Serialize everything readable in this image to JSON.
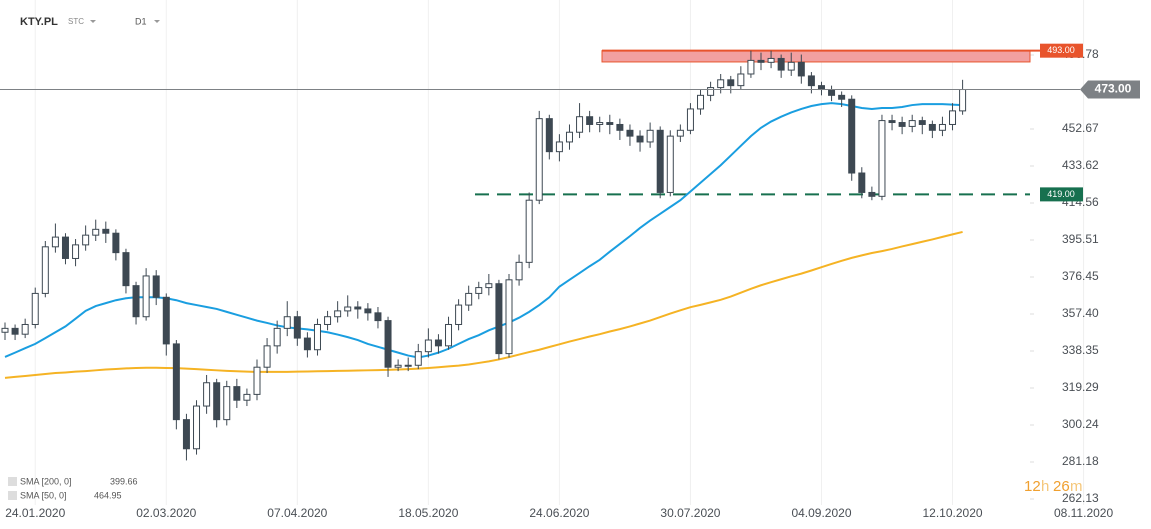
{
  "header": {
    "symbol": "KTY.PL",
    "type": "STC",
    "interval": "D1"
  },
  "chart_data": {
    "type": "candlestick",
    "categories": [
      null,
      null,
      null,
      "24.01.2020",
      null,
      null,
      null,
      null,
      null,
      null,
      null,
      null,
      null,
      null,
      null,
      null,
      "02.03.2020",
      null,
      null,
      null,
      null,
      null,
      null,
      null,
      null,
      null,
      null,
      null,
      null,
      "07.04.2020",
      null,
      null,
      null,
      null,
      null,
      null,
      null,
      null,
      null,
      null,
      null,
      null,
      "18.05.2020",
      null,
      null,
      null,
      null,
      null,
      null,
      null,
      null,
      null,
      null,
      null,
      null,
      "24.06.2020",
      null,
      null,
      null,
      null,
      null,
      null,
      null,
      null,
      null,
      null,
      null,
      null,
      "30.07.2020",
      null,
      null,
      null,
      null,
      null,
      null,
      null,
      null,
      null,
      null,
      null,
      null,
      "04.09.2020",
      null,
      null,
      null,
      null,
      null,
      null,
      null,
      null,
      null,
      null,
      null,
      null,
      "12.10.2020",
      null,
      null,
      null,
      null,
      null,
      null,
      null,
      null,
      null,
      null,
      null,
      null,
      "08.11.2020"
    ],
    "open": [
      348,
      350,
      347,
      352,
      368,
      392,
      397,
      386,
      393,
      398,
      401,
      399,
      389,
      372,
      356,
      377,
      366,
      342,
      303,
      288,
      310,
      322,
      303,
      320,
      313,
      316,
      330,
      341,
      350,
      356,
      345,
      339,
      352,
      356,
      359,
      361,
      360,
      358,
      354,
      330,
      331,
      331,
      338,
      344,
      341,
      352,
      362,
      368,
      371,
      373,
      337,
      375,
      384,
      416,
      458,
      441,
      446,
      451,
      459,
      455,
      456,
      455,
      452,
      449,
      446,
      452,
      420,
      449,
      452,
      463,
      470,
      474,
      478,
      475,
      481,
      488,
      487,
      489,
      483,
      487,
      480,
      475,
      473,
      470,
      468,
      430,
      420,
      418,
      457,
      456,
      454,
      457,
      455,
      452,
      455,
      462,
      null,
      null,
      null,
      null,
      null,
      null,
      null,
      null,
      null,
      null,
      null,
      null
    ],
    "high": [
      353,
      352,
      355,
      371,
      395,
      404,
      399,
      396,
      403,
      406,
      405,
      401,
      391,
      374,
      381,
      380,
      368,
      344,
      306,
      313,
      326,
      324,
      323,
      324,
      319,
      334,
      345,
      354,
      364,
      359,
      348,
      355,
      359,
      364,
      367,
      364,
      363,
      361,
      356,
      334,
      335,
      342,
      350,
      347,
      356,
      365,
      372,
      374,
      378,
      375,
      378,
      388,
      420,
      462,
      460,
      450,
      455,
      466,
      462,
      459,
      460,
      458,
      455,
      452,
      456,
      454,
      452,
      455,
      466,
      473,
      477,
      481,
      480,
      485,
      493,
      492,
      493,
      491,
      492,
      491,
      482,
      477,
      475,
      472,
      470,
      433,
      423,
      460,
      460,
      459,
      460,
      459,
      457,
      459,
      466,
      478,
      null,
      null,
      null,
      null,
      null,
      null,
      null,
      null,
      null,
      null,
      null,
      null
    ],
    "low": [
      344,
      344,
      345,
      350,
      366,
      389,
      383,
      382,
      390,
      395,
      394,
      385,
      368,
      352,
      354,
      362,
      336,
      298,
      282,
      285,
      306,
      299,
      300,
      309,
      310,
      313,
      327,
      337,
      346,
      341,
      335,
      336,
      349,
      353,
      356,
      355,
      354,
      350,
      325,
      328,
      328,
      329,
      335,
      337,
      339,
      349,
      359,
      365,
      367,
      334,
      335,
      372,
      381,
      414,
      437,
      436,
      442,
      448,
      451,
      451,
      450,
      447,
      444,
      441,
      443,
      417,
      418,
      446,
      450,
      460,
      467,
      471,
      471,
      473,
      479,
      483,
      484,
      479,
      480,
      476,
      471,
      470,
      467,
      464,
      426,
      417,
      416,
      416,
      452,
      450,
      451,
      450,
      448,
      449,
      452,
      460,
      null,
      null,
      null,
      null,
      null,
      null,
      null,
      null,
      null,
      null,
      null,
      null
    ],
    "close": [
      350,
      347,
      352,
      368,
      392,
      397,
      386,
      393,
      398,
      401,
      399,
      389,
      372,
      356,
      377,
      366,
      342,
      303,
      288,
      310,
      322,
      303,
      320,
      313,
      316,
      330,
      341,
      350,
      356,
      345,
      339,
      352,
      356,
      359,
      361,
      360,
      358,
      354,
      330,
      331,
      331,
      338,
      344,
      341,
      352,
      362,
      368,
      371,
      373,
      337,
      375,
      384,
      416,
      458,
      441,
      446,
      451,
      459,
      455,
      456,
      455,
      452,
      449,
      446,
      452,
      420,
      449,
      452,
      463,
      470,
      474,
      478,
      475,
      481,
      488,
      487,
      489,
      483,
      487,
      480,
      475,
      473,
      470,
      468,
      430,
      420,
      418,
      457,
      456,
      454,
      457,
      455,
      452,
      455,
      462,
      473,
      null,
      null,
      null,
      null,
      null,
      null,
      null,
      null,
      null,
      null,
      null,
      null
    ],
    "colors": {
      "up": "#ffffff",
      "down": "#3d4852",
      "wick": "#3d4852"
    },
    "series": [
      {
        "name": "SMA [200, 0]",
        "color": "#f5b324",
        "last": 399.66,
        "values": [
          324.5,
          325,
          325.5,
          326,
          326.5,
          327,
          327.3,
          327.7,
          328,
          328.4,
          328.8,
          329.1,
          329.4,
          329.6,
          329.7,
          329.7,
          329.6,
          329.5,
          329.3,
          329,
          328.7,
          328.4,
          328.1,
          327.9,
          327.7,
          327.6,
          327.6,
          327.6,
          327.6,
          327.7,
          327.8,
          327.9,
          328,
          328.1,
          328.2,
          328.3,
          328.4,
          328.5,
          328.6,
          328.8,
          329,
          329.3,
          329.6,
          330,
          330.4,
          330.8,
          331.4,
          332.2,
          333,
          334,
          335.2,
          336.5,
          337.8,
          339,
          340.4,
          341.8,
          343.2,
          344.5,
          345.8,
          347,
          348.4,
          349.6,
          351,
          352.5,
          354,
          355.8,
          357.6,
          359.3,
          360.9,
          362.1,
          363.4,
          364.7,
          366.4,
          368.4,
          370.4,
          372.2,
          373.8,
          375.3,
          376.8,
          378.2,
          379.8,
          381.5,
          383.2,
          384.8,
          386.3,
          387.6,
          388.8,
          389.8,
          390.9,
          392.2,
          393.4,
          394.6,
          395.8,
          397.1,
          398.4,
          399.66,
          null,
          null,
          null,
          null,
          null,
          null,
          null,
          null,
          null,
          null,
          null,
          null
        ]
      },
      {
        "name": "SMA [50, 0]",
        "color": "#1a9ee0",
        "last": 464.95,
        "values": [
          335.3,
          337.5,
          339.8,
          342,
          345,
          348,
          351,
          355,
          359,
          361.5,
          363,
          364.5,
          365.5,
          366,
          366,
          366,
          365.5,
          364.5,
          363,
          362,
          361,
          360,
          358.5,
          357,
          355.5,
          354,
          352.8,
          351.5,
          350.5,
          350,
          349.5,
          348.8,
          348,
          346.8,
          345.5,
          344,
          342,
          340.5,
          339,
          337.5,
          336,
          335,
          336,
          337.5,
          339.5,
          342,
          344.5,
          346.5,
          349,
          351,
          353,
          355.5,
          358.5,
          362,
          366,
          371.5,
          375,
          378.5,
          382,
          385.3,
          389.5,
          393.5,
          397.5,
          401.7,
          405.5,
          409,
          412.5,
          416,
          420.5,
          425,
          429.5,
          434,
          439,
          444,
          449,
          453.3,
          456.5,
          459,
          461.2,
          463,
          464.5,
          465.5,
          466,
          465.5,
          464.5,
          463.5,
          463,
          463.5,
          463.5,
          464,
          465,
          465.5,
          465.5,
          465.5,
          465.2,
          464.95,
          null,
          null,
          null,
          null,
          null,
          null,
          null,
          null,
          null,
          null,
          null,
          null
        ]
      }
    ],
    "ylim": [
      259.04,
      519.1
    ],
    "yticks": [
      490.78,
      452.67,
      433.62,
      414.56,
      395.51,
      376.45,
      {
        "value": 357.4,
        "label": "357.40"
      },
      338.35,
      319.29,
      300.24,
      281.18,
      262.13
    ],
    "grid": true,
    "levels": [
      {
        "value": 493,
        "label": "493.00",
        "color": "#e8542c",
        "zone_bottom": 487.2
      },
      {
        "value": 419,
        "label": "419.00",
        "color": "#17704f"
      }
    ],
    "last_price": {
      "value": 473,
      "label": "473.00",
      "color": "#7d8185"
    }
  },
  "timer": [
    "12",
    "h",
    "26",
    "m"
  ]
}
